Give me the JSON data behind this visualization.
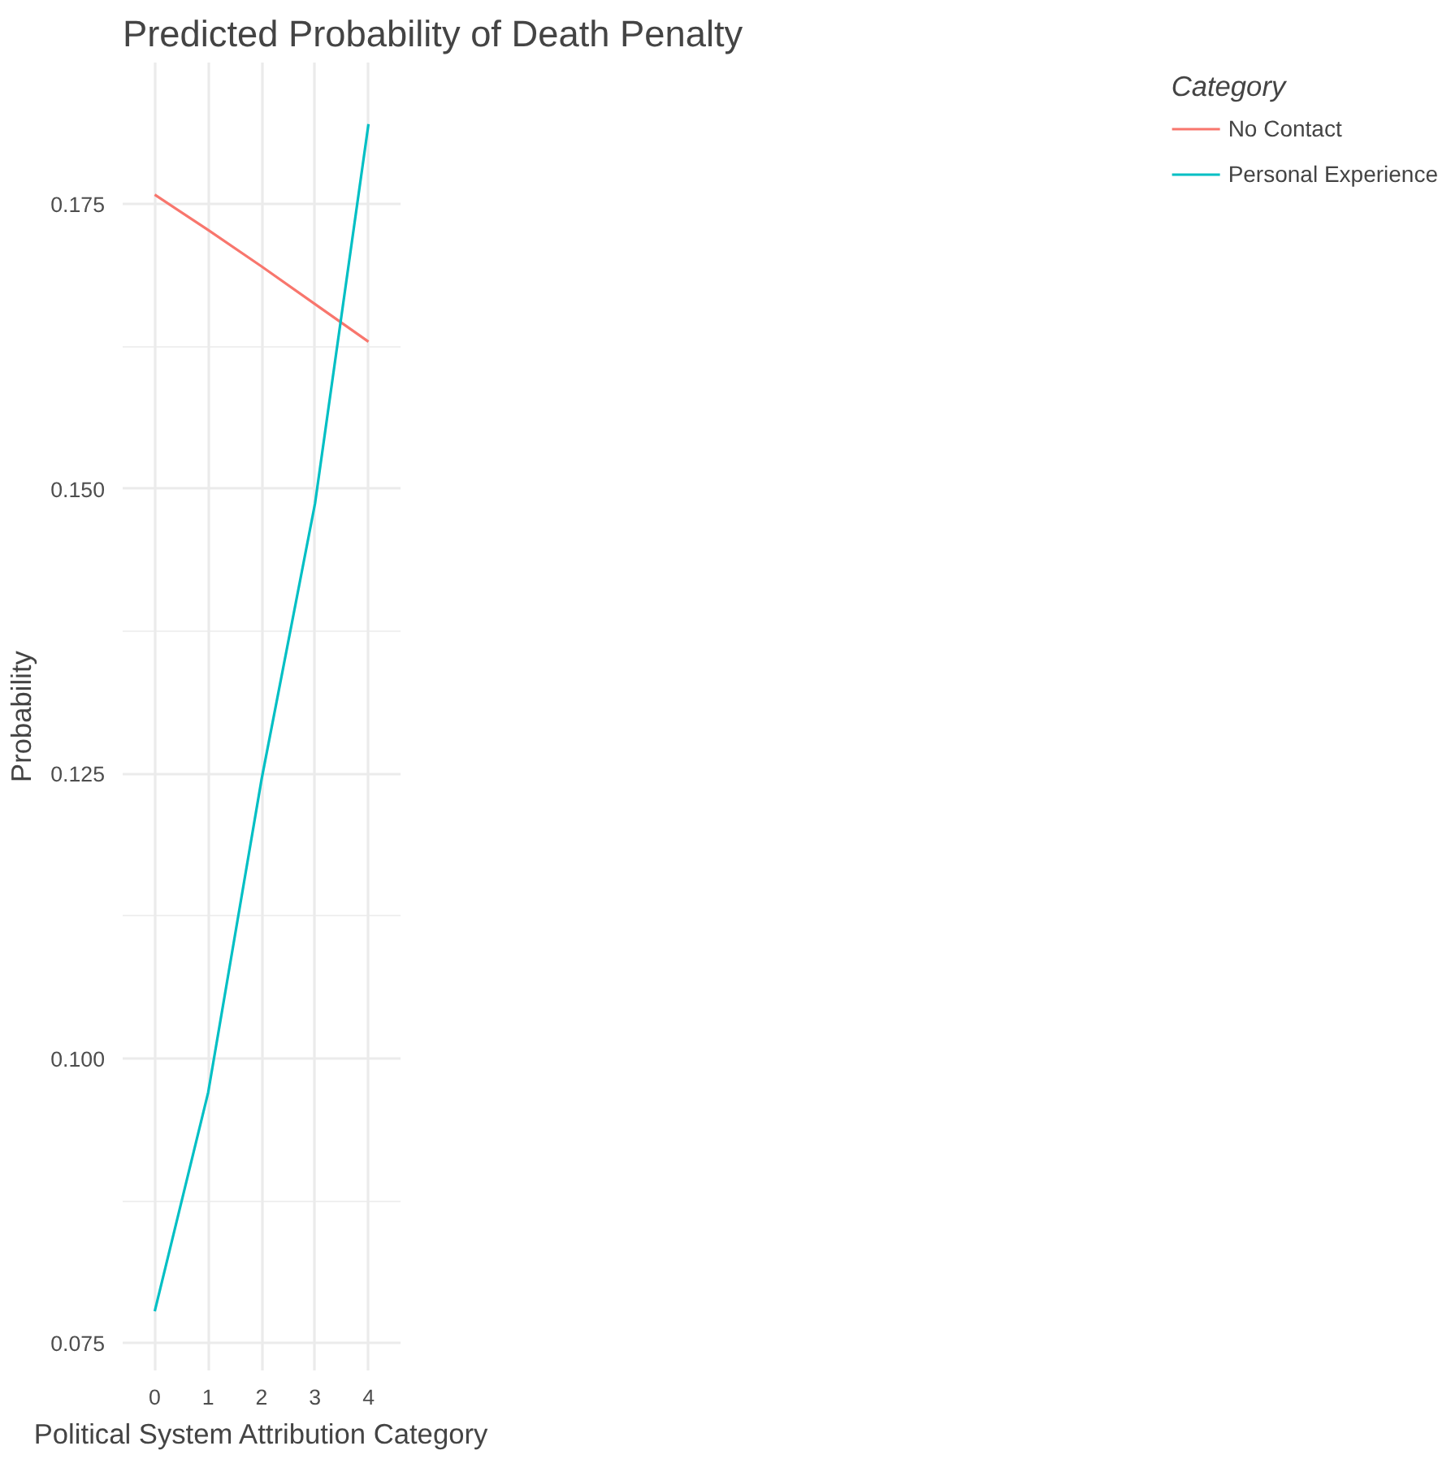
{
  "chart_data": {
    "type": "line",
    "title": "Predicted Probability of Death Penalty",
    "xlabel": "Political System Attribution Category",
    "ylabel": "Probability",
    "legend_title": "Category",
    "x": [
      0,
      1,
      2,
      3,
      4
    ],
    "series": [
      {
        "name": "No Contact",
        "color": "#f8766d",
        "values": [
          0.1758,
          0.1727,
          0.1695,
          0.1662,
          0.1629
        ]
      },
      {
        "name": "Personal Experience",
        "color": "#00bfc4",
        "values": [
          0.0778,
          0.097,
          0.1245,
          0.1487,
          0.182
        ]
      }
    ],
    "xlim": [
      -0.6,
      4.6
    ],
    "ylim": [
      0.0726,
      0.1874
    ],
    "xticks": [
      0,
      1,
      2,
      3,
      4
    ],
    "yticks": [
      {
        "value": 0.075,
        "label": "0.075"
      },
      {
        "value": 0.1,
        "label": "0.100"
      },
      {
        "value": 0.125,
        "label": "0.125"
      },
      {
        "value": 0.15,
        "label": "0.150"
      },
      {
        "value": 0.175,
        "label": "0.175"
      }
    ],
    "grid": true,
    "legend": "right",
    "marker": "none",
    "line_style": "solid"
  }
}
